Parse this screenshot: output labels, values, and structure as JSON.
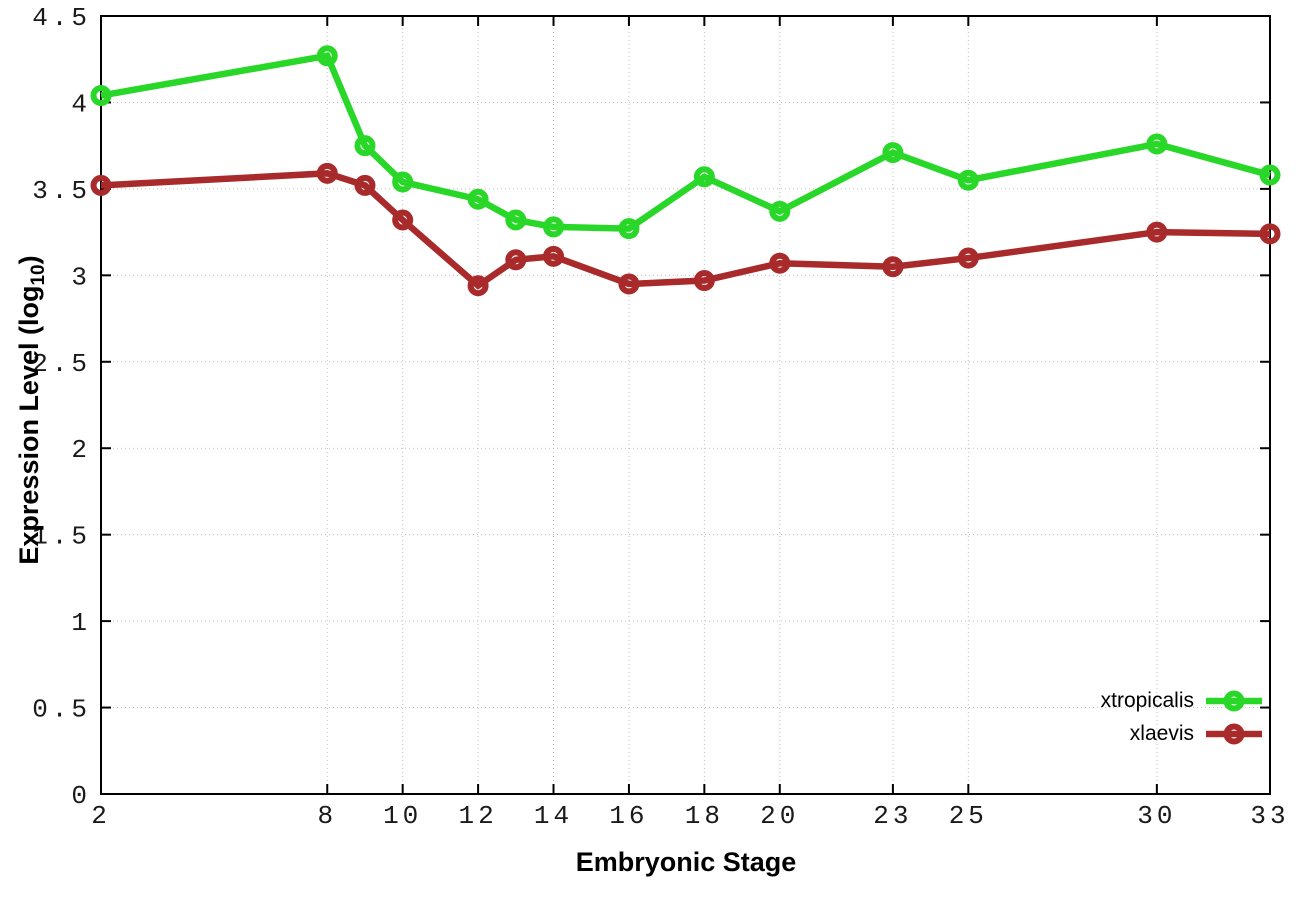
{
  "page": {
    "background": "#ffffff"
  },
  "chart_data": {
    "type": "line",
    "title": "",
    "xlabel": "Embryonic Stage",
    "ylabel_prefix": "Expression Level (log",
    "ylabel_sub": "10",
    "ylabel_suffix": ")",
    "xlim": [
      2,
      33
    ],
    "ylim": [
      0,
      4.5
    ],
    "grid": "dotted",
    "grid_color": "#c0c0c0",
    "border_color": "#000000",
    "legend_position": "bottom-right",
    "xticks": [
      2,
      8,
      10,
      12,
      14,
      16,
      18,
      20,
      23,
      25,
      30,
      33
    ],
    "xtick_labels": [
      "2",
      "8",
      "10",
      "12",
      "14",
      "16",
      "18",
      "20",
      "23",
      "25",
      "30",
      "33"
    ],
    "yticks": [
      0,
      0.5,
      1,
      1.5,
      2,
      2.5,
      3,
      3.5,
      4,
      4.5
    ],
    "ytick_labels": [
      "0",
      "0.5",
      "1",
      "1.5",
      "2",
      "2.5",
      "3",
      "3.5",
      "4",
      "4.5"
    ],
    "x": [
      2,
      8,
      9,
      10,
      12,
      13,
      14,
      16,
      18,
      20,
      23,
      25,
      30,
      33
    ],
    "series": [
      {
        "name": "xtropicalis",
        "color": "#28d728",
        "values": [
          4.04,
          4.27,
          3.75,
          3.54,
          3.44,
          3.32,
          3.28,
          3.27,
          3.57,
          3.37,
          3.71,
          3.55,
          3.76,
          3.58
        ]
      },
      {
        "name": "xlaevis",
        "color": "#a92a2a",
        "values": [
          3.52,
          3.59,
          3.52,
          3.32,
          2.94,
          3.09,
          3.11,
          2.95,
          2.97,
          3.07,
          3.05,
          3.1,
          3.25,
          3.24
        ]
      }
    ]
  }
}
